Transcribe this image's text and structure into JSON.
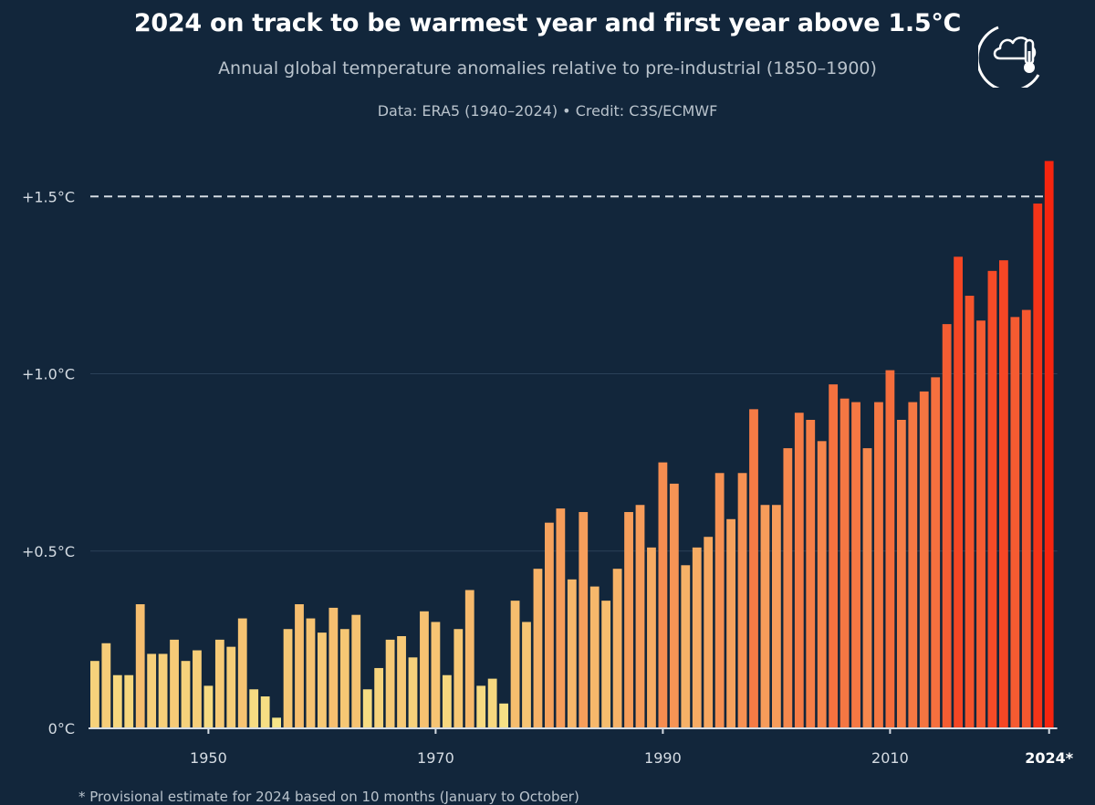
{
  "header": {
    "title": "2024 on track to be warmest year and first year above 1.5°C",
    "subtitle": "Annual global temperature anomalies relative to pre-industrial (1850–1900)",
    "source": "Data: ERA5 (1940–2024) • Credit: C3S/ECMWF"
  },
  "footnote": "* Provisional estimate for 2024 based on 10 months (January to October)",
  "logo_icon": "cloud-thermometer-icon",
  "chart_data": {
    "type": "bar",
    "title": "2024 on track to be warmest year and first year above 1.5°C",
    "subtitle": "Annual global temperature anomalies relative to pre-industrial (1850–1900)",
    "xlabel": "",
    "ylabel": "",
    "ylim": [
      0,
      1.6
    ],
    "yticks": [
      {
        "value": 0,
        "label": "0°C"
      },
      {
        "value": 0.5,
        "label": "+0.5°C"
      },
      {
        "value": 1.0,
        "label": "+1.0°C"
      },
      {
        "value": 1.5,
        "label": "+1.5°C"
      }
    ],
    "xticks": [
      {
        "value": 1950,
        "label": "1950"
      },
      {
        "value": 1970,
        "label": "1970"
      },
      {
        "value": 1990,
        "label": "1990"
      },
      {
        "value": 2010,
        "label": "2010"
      },
      {
        "value": 2024,
        "label": "2024*"
      }
    ],
    "reference_line": {
      "value": 1.5,
      "style": "dashed"
    },
    "grid": true,
    "color_low": "#f6e98a",
    "color_high": "#f5250f",
    "categories": [
      1940,
      1941,
      1942,
      1943,
      1944,
      1945,
      1946,
      1947,
      1948,
      1949,
      1950,
      1951,
      1952,
      1953,
      1954,
      1955,
      1956,
      1957,
      1958,
      1959,
      1960,
      1961,
      1962,
      1963,
      1964,
      1965,
      1966,
      1967,
      1968,
      1969,
      1970,
      1971,
      1972,
      1973,
      1974,
      1975,
      1976,
      1977,
      1978,
      1979,
      1980,
      1981,
      1982,
      1983,
      1984,
      1985,
      1986,
      1987,
      1988,
      1989,
      1990,
      1991,
      1992,
      1993,
      1994,
      1995,
      1996,
      1997,
      1998,
      1999,
      2000,
      2001,
      2002,
      2003,
      2004,
      2005,
      2006,
      2007,
      2008,
      2009,
      2010,
      2011,
      2012,
      2013,
      2014,
      2015,
      2016,
      2017,
      2018,
      2019,
      2020,
      2021,
      2022,
      2023,
      2024
    ],
    "values": [
      0.19,
      0.24,
      0.15,
      0.15,
      0.35,
      0.21,
      0.21,
      0.25,
      0.19,
      0.22,
      0.12,
      0.25,
      0.23,
      0.31,
      0.11,
      0.09,
      0.03,
      0.28,
      0.35,
      0.31,
      0.27,
      0.34,
      0.28,
      0.32,
      0.11,
      0.17,
      0.25,
      0.26,
      0.2,
      0.33,
      0.3,
      0.15,
      0.28,
      0.39,
      0.12,
      0.14,
      0.07,
      0.36,
      0.3,
      0.45,
      0.58,
      0.62,
      0.42,
      0.61,
      0.4,
      0.36,
      0.45,
      0.61,
      0.63,
      0.51,
      0.75,
      0.69,
      0.46,
      0.51,
      0.54,
      0.72,
      0.59,
      0.72,
      0.9,
      0.63,
      0.63,
      0.79,
      0.89,
      0.87,
      0.81,
      0.97,
      0.93,
      0.92,
      0.79,
      0.92,
      1.01,
      0.87,
      0.92,
      0.95,
      0.99,
      1.14,
      1.33,
      1.22,
      1.15,
      1.29,
      1.32,
      1.16,
      1.18,
      1.48,
      1.6
    ]
  }
}
